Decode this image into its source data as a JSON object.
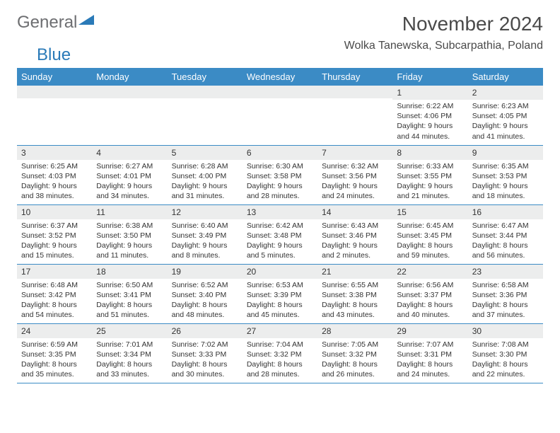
{
  "logo": {
    "text1": "General",
    "text2": "Blue"
  },
  "title": "November 2024",
  "location": "Wolka Tanewska, Subcarpathia, Poland",
  "colors": {
    "header_bg": "#3b8bc5",
    "header_fg": "#ffffff",
    "daynum_bg": "#eceded",
    "border": "#3b8bc5",
    "logo_gray": "#6d6e71",
    "logo_blue": "#2a7ab8"
  },
  "fonts": {
    "title_size": 28,
    "location_size": 16,
    "header_size": 13,
    "daynum_size": 12,
    "body_size": 10.5
  },
  "day_headers": [
    "Sunday",
    "Monday",
    "Tuesday",
    "Wednesday",
    "Thursday",
    "Friday",
    "Saturday"
  ],
  "weeks": [
    [
      {
        "n": "",
        "sunrise": "",
        "sunset": "",
        "daylight": ""
      },
      {
        "n": "",
        "sunrise": "",
        "sunset": "",
        "daylight": ""
      },
      {
        "n": "",
        "sunrise": "",
        "sunset": "",
        "daylight": ""
      },
      {
        "n": "",
        "sunrise": "",
        "sunset": "",
        "daylight": ""
      },
      {
        "n": "",
        "sunrise": "",
        "sunset": "",
        "daylight": ""
      },
      {
        "n": "1",
        "sunrise": "Sunrise: 6:22 AM",
        "sunset": "Sunset: 4:06 PM",
        "daylight": "Daylight: 9 hours and 44 minutes."
      },
      {
        "n": "2",
        "sunrise": "Sunrise: 6:23 AM",
        "sunset": "Sunset: 4:05 PM",
        "daylight": "Daylight: 9 hours and 41 minutes."
      }
    ],
    [
      {
        "n": "3",
        "sunrise": "Sunrise: 6:25 AM",
        "sunset": "Sunset: 4:03 PM",
        "daylight": "Daylight: 9 hours and 38 minutes."
      },
      {
        "n": "4",
        "sunrise": "Sunrise: 6:27 AM",
        "sunset": "Sunset: 4:01 PM",
        "daylight": "Daylight: 9 hours and 34 minutes."
      },
      {
        "n": "5",
        "sunrise": "Sunrise: 6:28 AM",
        "sunset": "Sunset: 4:00 PM",
        "daylight": "Daylight: 9 hours and 31 minutes."
      },
      {
        "n": "6",
        "sunrise": "Sunrise: 6:30 AM",
        "sunset": "Sunset: 3:58 PM",
        "daylight": "Daylight: 9 hours and 28 minutes."
      },
      {
        "n": "7",
        "sunrise": "Sunrise: 6:32 AM",
        "sunset": "Sunset: 3:56 PM",
        "daylight": "Daylight: 9 hours and 24 minutes."
      },
      {
        "n": "8",
        "sunrise": "Sunrise: 6:33 AM",
        "sunset": "Sunset: 3:55 PM",
        "daylight": "Daylight: 9 hours and 21 minutes."
      },
      {
        "n": "9",
        "sunrise": "Sunrise: 6:35 AM",
        "sunset": "Sunset: 3:53 PM",
        "daylight": "Daylight: 9 hours and 18 minutes."
      }
    ],
    [
      {
        "n": "10",
        "sunrise": "Sunrise: 6:37 AM",
        "sunset": "Sunset: 3:52 PM",
        "daylight": "Daylight: 9 hours and 15 minutes."
      },
      {
        "n": "11",
        "sunrise": "Sunrise: 6:38 AM",
        "sunset": "Sunset: 3:50 PM",
        "daylight": "Daylight: 9 hours and 11 minutes."
      },
      {
        "n": "12",
        "sunrise": "Sunrise: 6:40 AM",
        "sunset": "Sunset: 3:49 PM",
        "daylight": "Daylight: 9 hours and 8 minutes."
      },
      {
        "n": "13",
        "sunrise": "Sunrise: 6:42 AM",
        "sunset": "Sunset: 3:48 PM",
        "daylight": "Daylight: 9 hours and 5 minutes."
      },
      {
        "n": "14",
        "sunrise": "Sunrise: 6:43 AM",
        "sunset": "Sunset: 3:46 PM",
        "daylight": "Daylight: 9 hours and 2 minutes."
      },
      {
        "n": "15",
        "sunrise": "Sunrise: 6:45 AM",
        "sunset": "Sunset: 3:45 PM",
        "daylight": "Daylight: 8 hours and 59 minutes."
      },
      {
        "n": "16",
        "sunrise": "Sunrise: 6:47 AM",
        "sunset": "Sunset: 3:44 PM",
        "daylight": "Daylight: 8 hours and 56 minutes."
      }
    ],
    [
      {
        "n": "17",
        "sunrise": "Sunrise: 6:48 AM",
        "sunset": "Sunset: 3:42 PM",
        "daylight": "Daylight: 8 hours and 54 minutes."
      },
      {
        "n": "18",
        "sunrise": "Sunrise: 6:50 AM",
        "sunset": "Sunset: 3:41 PM",
        "daylight": "Daylight: 8 hours and 51 minutes."
      },
      {
        "n": "19",
        "sunrise": "Sunrise: 6:52 AM",
        "sunset": "Sunset: 3:40 PM",
        "daylight": "Daylight: 8 hours and 48 minutes."
      },
      {
        "n": "20",
        "sunrise": "Sunrise: 6:53 AM",
        "sunset": "Sunset: 3:39 PM",
        "daylight": "Daylight: 8 hours and 45 minutes."
      },
      {
        "n": "21",
        "sunrise": "Sunrise: 6:55 AM",
        "sunset": "Sunset: 3:38 PM",
        "daylight": "Daylight: 8 hours and 43 minutes."
      },
      {
        "n": "22",
        "sunrise": "Sunrise: 6:56 AM",
        "sunset": "Sunset: 3:37 PM",
        "daylight": "Daylight: 8 hours and 40 minutes."
      },
      {
        "n": "23",
        "sunrise": "Sunrise: 6:58 AM",
        "sunset": "Sunset: 3:36 PM",
        "daylight": "Daylight: 8 hours and 37 minutes."
      }
    ],
    [
      {
        "n": "24",
        "sunrise": "Sunrise: 6:59 AM",
        "sunset": "Sunset: 3:35 PM",
        "daylight": "Daylight: 8 hours and 35 minutes."
      },
      {
        "n": "25",
        "sunrise": "Sunrise: 7:01 AM",
        "sunset": "Sunset: 3:34 PM",
        "daylight": "Daylight: 8 hours and 33 minutes."
      },
      {
        "n": "26",
        "sunrise": "Sunrise: 7:02 AM",
        "sunset": "Sunset: 3:33 PM",
        "daylight": "Daylight: 8 hours and 30 minutes."
      },
      {
        "n": "27",
        "sunrise": "Sunrise: 7:04 AM",
        "sunset": "Sunset: 3:32 PM",
        "daylight": "Daylight: 8 hours and 28 minutes."
      },
      {
        "n": "28",
        "sunrise": "Sunrise: 7:05 AM",
        "sunset": "Sunset: 3:32 PM",
        "daylight": "Daylight: 8 hours and 26 minutes."
      },
      {
        "n": "29",
        "sunrise": "Sunrise: 7:07 AM",
        "sunset": "Sunset: 3:31 PM",
        "daylight": "Daylight: 8 hours and 24 minutes."
      },
      {
        "n": "30",
        "sunrise": "Sunrise: 7:08 AM",
        "sunset": "Sunset: 3:30 PM",
        "daylight": "Daylight: 8 hours and 22 minutes."
      }
    ]
  ]
}
